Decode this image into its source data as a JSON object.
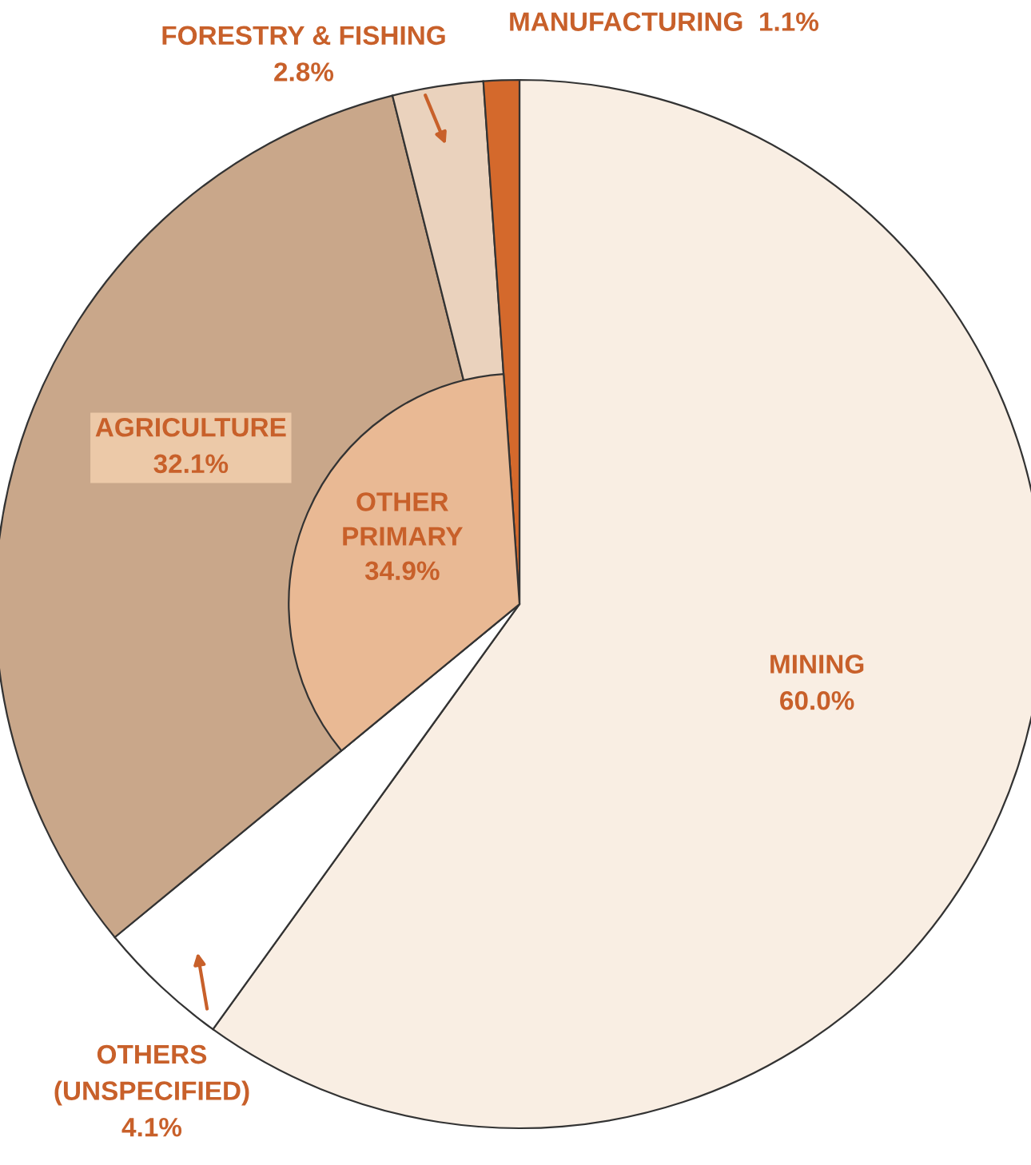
{
  "chart_data": {
    "type": "pie",
    "categories": [
      "MINING",
      "OTHERS\n(UNSPECIFIED)",
      "AGRICULTURE",
      "FORESTRY & FISHING",
      "MANUFACTURING"
    ],
    "values": [
      60.0,
      4.1,
      32.1,
      2.8,
      1.1
    ],
    "colors": [
      "#f9eee3",
      "#ffffff",
      "#c9a78a",
      "#ead2bd",
      "#d4692c"
    ],
    "value_labels": [
      "60.0%",
      "4.1%",
      "32.1%",
      "2.8%",
      "1.1%"
    ],
    "annotations": [
      "OTHER\nPRIMARY\n34.9%"
    ]
  }
}
